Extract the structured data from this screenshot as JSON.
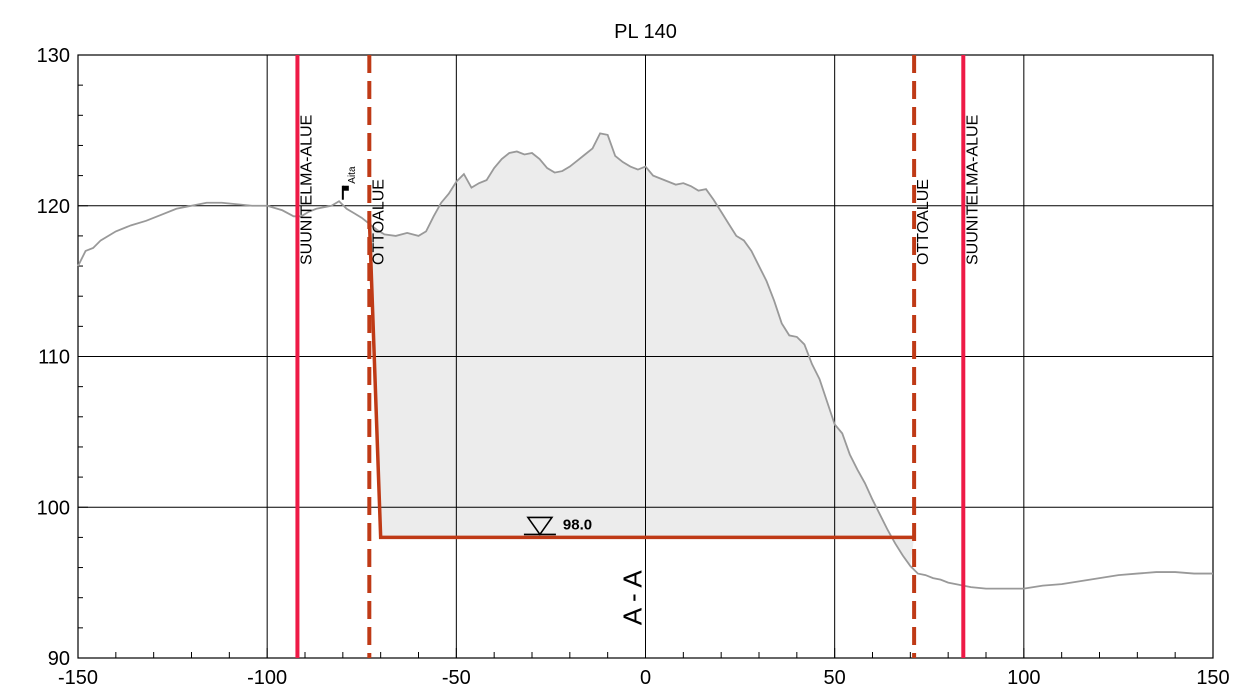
{
  "chart_data": {
    "type": "line",
    "title": "PL 140",
    "xlabel": "",
    "ylabel": "",
    "xlim": [
      -150,
      150
    ],
    "ylim": [
      90,
      130
    ],
    "x_ticks": [
      -150,
      -100,
      -50,
      0,
      50,
      100,
      150
    ],
    "y_ticks": [
      90,
      100,
      110,
      120,
      130
    ],
    "x_tick_labels": [
      "-150",
      "-100",
      "-50",
      "0",
      "50",
      "100",
      "150"
    ],
    "y_tick_labels": [
      "90",
      "100",
      "110",
      "120",
      "130"
    ],
    "grid": true,
    "series": [
      {
        "name": "",
        "role": "ground-profile",
        "color": "#999999",
        "x": [
          -150,
          -148,
          -146,
          -144,
          -140,
          -136,
          -132,
          -128,
          -124,
          -120,
          -116,
          -112,
          -108,
          -104,
          -100,
          -96,
          -93,
          -91,
          -89,
          -87,
          -85,
          -83,
          -81,
          -79,
          -77,
          -75,
          -73,
          -71,
          -69,
          -66,
          -63,
          -60,
          -58,
          -56,
          -54,
          -52,
          -50,
          -48,
          -46,
          -44,
          -42,
          -40,
          -38,
          -36,
          -34,
          -32,
          -30,
          -28,
          -26,
          -24,
          -22,
          -20,
          -18,
          -16,
          -14,
          -12,
          -10,
          -8,
          -6,
          -4,
          -2,
          0,
          2,
          4,
          6,
          8,
          10,
          12,
          14,
          16,
          18,
          20,
          22,
          24,
          26,
          28,
          30,
          32,
          34,
          36,
          38,
          40,
          42,
          44,
          46,
          48,
          50,
          52,
          54,
          56,
          58,
          60,
          62,
          64,
          66,
          68,
          70,
          72,
          74,
          76,
          78,
          80,
          82,
          84,
          86,
          90,
          95,
          100,
          105,
          110,
          115,
          120,
          125,
          130,
          135,
          140,
          145,
          150
        ],
        "y": [
          116,
          117,
          117.2,
          117.7,
          118.3,
          118.7,
          119.0,
          119.4,
          119.8,
          120.0,
          120.2,
          120.2,
          120.1,
          120.0,
          120.0,
          119.7,
          119.3,
          119.3,
          119.6,
          119.8,
          119.9,
          120.0,
          120.3,
          119.8,
          119.5,
          119.2,
          118.8,
          118.4,
          118.1,
          118.0,
          118.2,
          118.0,
          118.3,
          119.3,
          120.2,
          120.8,
          121.6,
          122.1,
          121.2,
          121.5,
          121.7,
          122.5,
          123.1,
          123.5,
          123.6,
          123.4,
          123.5,
          123.1,
          122.5,
          122.2,
          122.3,
          122.6,
          123.0,
          123.4,
          123.8,
          124.8,
          124.7,
          123.3,
          122.9,
          122.6,
          122.4,
          122.6,
          122.0,
          121.8,
          121.6,
          121.4,
          121.5,
          121.3,
          121.0,
          121.1,
          120.4,
          119.6,
          118.8,
          118.0,
          117.7,
          117.0,
          116.0,
          115.0,
          113.7,
          112.2,
          111.4,
          111.3,
          110.8,
          109.5,
          108.5,
          107.0,
          105.5,
          104.9,
          103.5,
          102.5,
          101.6,
          100.5,
          99.5,
          98.5,
          97.6,
          96.8,
          96.1,
          95.6,
          95.5,
          95.3,
          95.2,
          95.0,
          94.9,
          94.8,
          94.7,
          94.6,
          94.6,
          94.6,
          94.8,
          94.9,
          95.1,
          95.3,
          95.5,
          95.6,
          95.7,
          95.7,
          95.6,
          95.6
        ]
      },
      {
        "name": "",
        "role": "excavation-line",
        "color": "#bf3a16",
        "x": [
          -73,
          -70,
          71
        ],
        "y": [
          119.2,
          98.0,
          98.0
        ]
      }
    ],
    "vertical_lines": [
      {
        "x": -92,
        "label": "SUUNITELMA-ALUE",
        "style": "solid",
        "color": "#ee1a46"
      },
      {
        "x": -73,
        "label": "OTTOALUE",
        "style": "dashed",
        "color": "#bf3a16"
      },
      {
        "x": 71,
        "label": "OTTOALUE",
        "style": "dashed",
        "color": "#bf3a16"
      },
      {
        "x": 84,
        "label": "SUUNITELMA-ALUE",
        "style": "solid",
        "color": "#ee1a46"
      }
    ],
    "annotations": [
      {
        "text": "Aita",
        "x": -80,
        "y": 120.4
      },
      {
        "text": "98.0",
        "x": -25,
        "y": 98.0
      },
      {
        "text": "A - A",
        "x": 0,
        "y": 94
      }
    ],
    "shaded_fill": {
      "color": "#ececec",
      "x_range": [
        -73,
        71
      ]
    }
  }
}
